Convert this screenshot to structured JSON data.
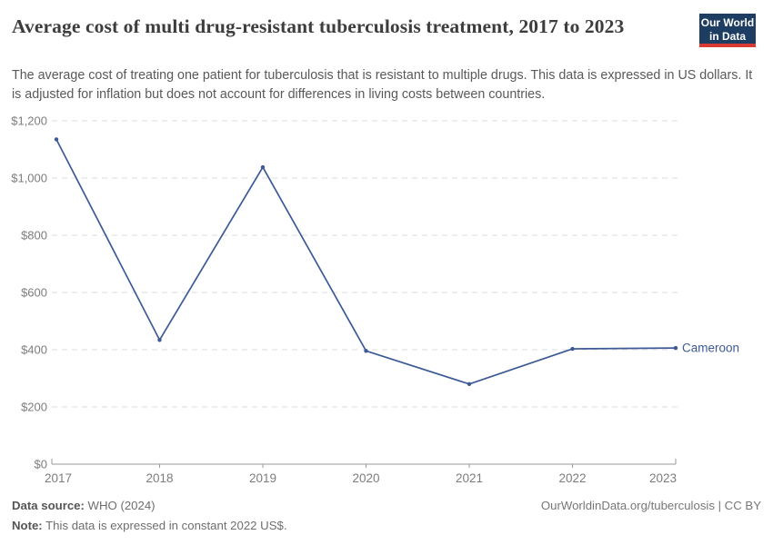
{
  "header": {
    "title": "Average cost of multi drug-resistant tuberculosis treatment, 2017 to 2023",
    "subtitle": "The average cost of treating one patient for tuberculosis that is resistant to multiple drugs. This data is expressed in US dollars. It is adjusted for inflation but does not account for differences in living costs between countries.",
    "logo": {
      "line1": "Our World",
      "line2": "in Data"
    }
  },
  "chart_data": {
    "type": "line",
    "title": "Average cost of multi drug-resistant tuberculosis treatment, 2017 to 2023",
    "x": [
      2017,
      2018,
      2019,
      2020,
      2021,
      2022,
      2023
    ],
    "x_tick_labels": [
      "2017",
      "2018",
      "2019",
      "2020",
      "2021",
      "2022",
      "2023"
    ],
    "series": [
      {
        "name": "Cameroon",
        "values": [
          1135,
          434,
          1038,
          396,
          280,
          403,
          406
        ],
        "color": "#3d5a96"
      }
    ],
    "ylim": [
      0,
      1200
    ],
    "y_ticks": [
      0,
      200,
      400,
      600,
      800,
      1000,
      1200
    ],
    "y_tick_labels": [
      "$0",
      "$200",
      "$400",
      "$600",
      "$800",
      "$1,000",
      "$1,200"
    ],
    "ylabel": "",
    "xlabel": "",
    "grid": "horizontal-dashed",
    "legend": "end-of-line-label"
  },
  "footer": {
    "source_label": "Data source:",
    "source_value": " WHO (2024)",
    "note_label": "Note:",
    "note_value": " This data is expressed in constant 2022 US$.",
    "right_text": "OurWorldinData.org/tuberculosis | CC BY"
  },
  "colors": {
    "line": "#3d5a96",
    "gridline": "#dedede",
    "axis": "#9a9a9a",
    "tick_text": "#7d7d7d",
    "logo_bg": "#1d3d63",
    "logo_accent": "#d93a34"
  }
}
